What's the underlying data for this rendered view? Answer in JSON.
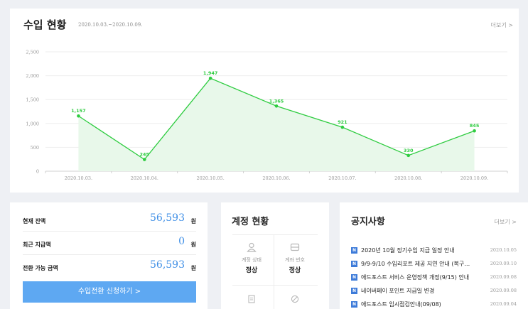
{
  "income": {
    "title": "수입 현황",
    "date_range": "2020.10.03.~2020.10.09.",
    "more_label": "더보기 >"
  },
  "chart_data": {
    "type": "area",
    "categories": [
      "2020.10.03.",
      "2020.10.04.",
      "2020.10.05.",
      "2020.10.06.",
      "2020.10.07.",
      "2020.10.08.",
      "2020.10.09."
    ],
    "values": [
      1157,
      245,
      1947,
      1365,
      921,
      330,
      845
    ],
    "value_labels": [
      "1,157",
      "245",
      "1,947",
      "1,365",
      "921",
      "330",
      "845"
    ],
    "y_ticks": [
      "0",
      "500",
      "1,000",
      "1,500",
      "2,000",
      "2,500"
    ],
    "ylim": [
      0,
      2500
    ],
    "grid": true,
    "color": "#2ecc40",
    "fill": "#e8f8ea"
  },
  "balance": {
    "rows": [
      {
        "label": "현재 잔액",
        "value": "56,593",
        "unit": "원"
      },
      {
        "label": "최근 지급액",
        "value": "0",
        "unit": "원"
      },
      {
        "label": "전환 가능 금액",
        "value": "56,593",
        "unit": "원"
      }
    ],
    "button_label": "수입전환 신청하기 >"
  },
  "account": {
    "title": "계정 현황",
    "cells": [
      {
        "icon": "person-icon",
        "label": "계정 상태",
        "value": "정상"
      },
      {
        "icon": "card-icon",
        "label": "계좌 번호",
        "value": "정상"
      },
      {
        "icon": "document-icon",
        "label": "",
        "value": ""
      },
      {
        "icon": "blocked-icon",
        "label": "",
        "value": ""
      }
    ]
  },
  "notice": {
    "title": "공지사항",
    "more_label": "더보기 >",
    "badge": "N",
    "items": [
      {
        "text": "2020년 10월 정기수입 지급 일정 안내",
        "date": "2020.10.05"
      },
      {
        "text": "9/9-9/10 수입리포트 제공 지연 안내 (복구…",
        "date": "2020.09.10"
      },
      {
        "text": "애드포스트 서비스 운영정책 개정(9/15) 안내",
        "date": "2020.09.08"
      },
      {
        "text": "네이버페이 포인트 지급일 변경",
        "date": "2020.09.08"
      },
      {
        "text": "애드포스트 임시점검안내(09/08)",
        "date": "2020.09.04"
      }
    ]
  }
}
